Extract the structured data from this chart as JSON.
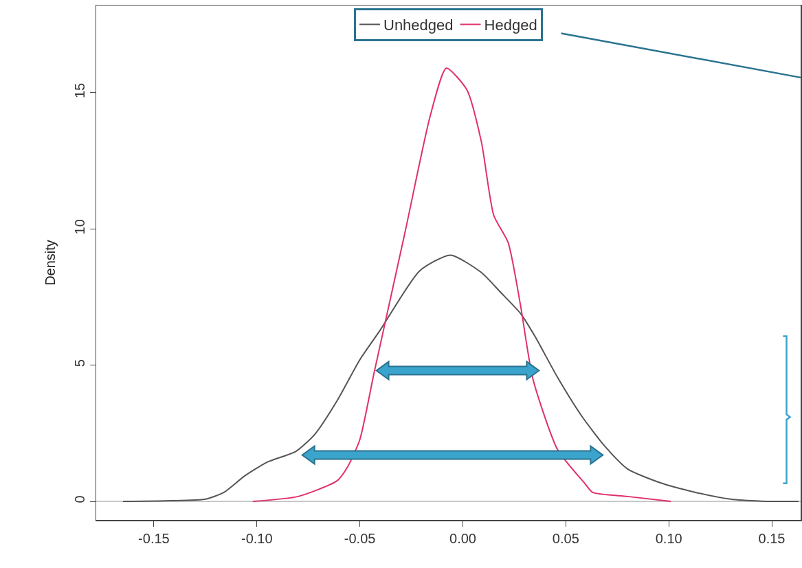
{
  "chart_data": {
    "type": "line",
    "ylabel": "Density",
    "xlim": [
      -0.178,
      0.164
    ],
    "xticks": [
      {
        "value": -0.15,
        "label": "-0.15"
      },
      {
        "value": -0.1,
        "label": "-0.10"
      },
      {
        "value": -0.05,
        "label": "-0.05"
      },
      {
        "value": 0,
        "label": "0.00"
      },
      {
        "value": 0.05,
        "label": "0.05"
      },
      {
        "value": 0.1,
        "label": "0.10"
      },
      {
        "value": 0.15,
        "label": "0.15"
      }
    ],
    "ylim": [
      -0.68,
      18.2
    ],
    "yticks": [
      0,
      5,
      10,
      15
    ],
    "grid": false,
    "legend": "top",
    "marker": "none",
    "line_style": "solid",
    "ref_lines": [
      {
        "axis": "y",
        "value": 0,
        "color": "#c8c8c8"
      }
    ],
    "series": [
      {
        "name": "Unhedged",
        "color": "#555555",
        "x": [
          -0.165,
          -0.145,
          -0.125,
          -0.116,
          -0.106,
          -0.095,
          -0.081,
          -0.072,
          -0.061,
          -0.05,
          -0.04,
          -0.021,
          -0.006,
          0.009,
          0.018,
          0.028,
          0.035,
          0.046,
          0.058,
          0.069,
          0.08,
          0.096,
          0.113,
          0.13,
          0.145,
          0.163
        ],
        "values": [
          0,
          0.02,
          0.08,
          0.33,
          0.93,
          1.44,
          1.84,
          2.45,
          3.7,
          5.2,
          6.3,
          8.46,
          9.04,
          8.4,
          7.7,
          6.9,
          6.06,
          4.55,
          3.1,
          2.02,
          1.19,
          0.68,
          0.33,
          0.08,
          0.01,
          0
        ]
      },
      {
        "name": "Hedged",
        "color": "#e0306a",
        "x": [
          -0.102,
          -0.08,
          -0.061,
          -0.056,
          -0.05,
          -0.043,
          -0.028,
          -0.016,
          -0.008,
          0.002,
          0.009,
          0.015,
          0.022,
          0.028,
          0.034,
          0.046,
          0.059,
          0.063,
          0.08,
          0.101
        ],
        "values": [
          0,
          0.18,
          0.76,
          1.26,
          2.27,
          4.75,
          9.9,
          14.1,
          15.9,
          15.1,
          13.2,
          10.5,
          9.5,
          7.2,
          4.5,
          1.9,
          0.68,
          0.33,
          0.18,
          0
        ]
      }
    ]
  }
}
